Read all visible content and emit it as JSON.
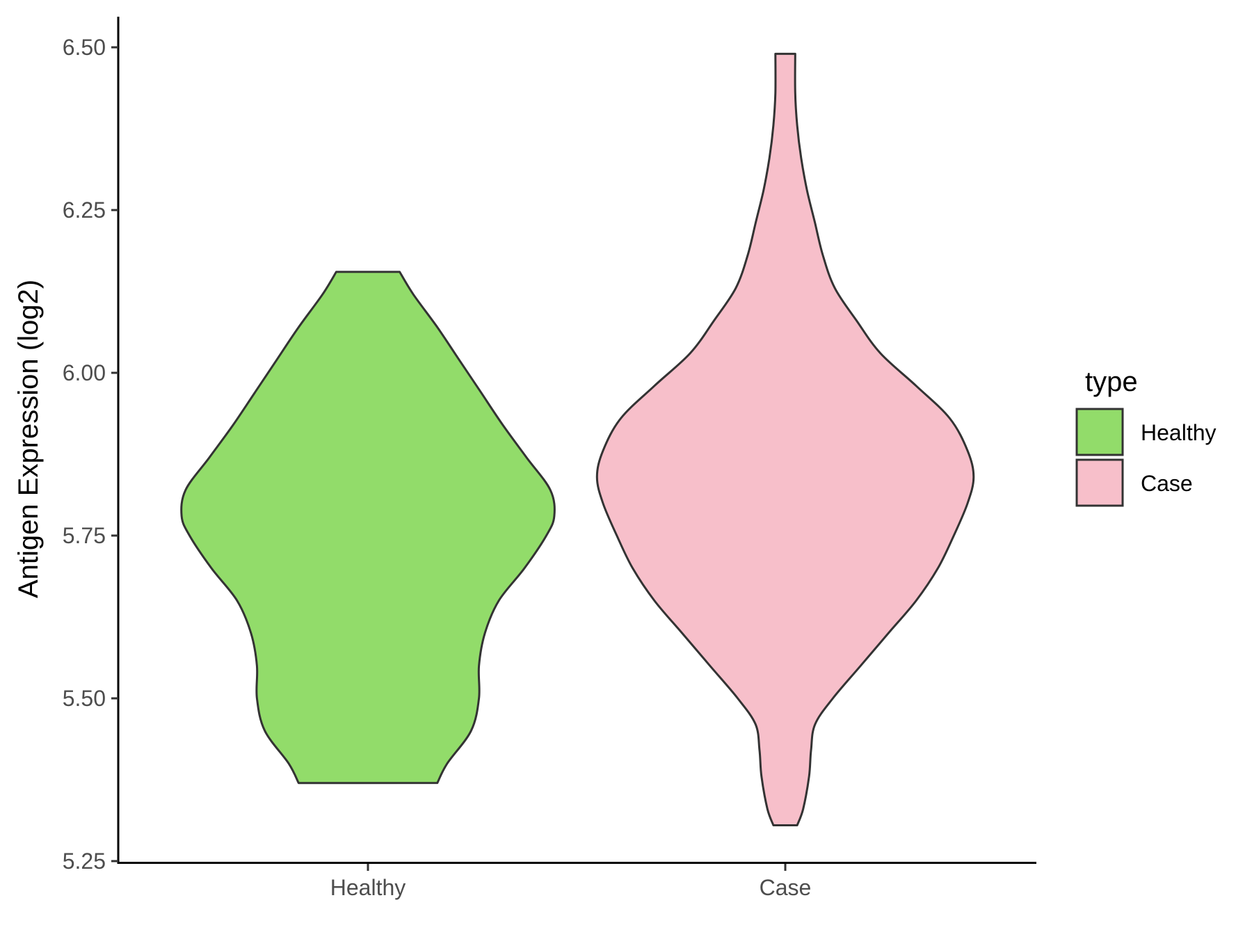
{
  "chart_data": {
    "type": "violin",
    "title": "",
    "xlabel": "",
    "ylabel": "Antigen Expression (log2)",
    "ylim": [
      5.25,
      6.5
    ],
    "yticks": [
      "5.25",
      "5.50",
      "5.75",
      "6.00",
      "6.25",
      "6.50"
    ],
    "categories": [
      "Healthy",
      "Case"
    ],
    "grid": false,
    "legend": {
      "title": "type",
      "position": "right",
      "entries": [
        {
          "label": "Healthy",
          "color": "#92dc6a"
        },
        {
          "label": "Case",
          "color": "#f7bfca"
        }
      ]
    },
    "series": [
      {
        "name": "Healthy",
        "color": "#92dc6a",
        "min": 5.37,
        "max": 6.155,
        "density_profile": [
          [
            5.37,
            0.35
          ],
          [
            5.4,
            0.4
          ],
          [
            5.45,
            0.52
          ],
          [
            5.5,
            0.56
          ],
          [
            5.55,
            0.56
          ],
          [
            5.6,
            0.59
          ],
          [
            5.65,
            0.66
          ],
          [
            5.7,
            0.79
          ],
          [
            5.75,
            0.9
          ],
          [
            5.78,
            0.94
          ],
          [
            5.82,
            0.92
          ],
          [
            5.87,
            0.8
          ],
          [
            5.92,
            0.68
          ],
          [
            5.97,
            0.57
          ],
          [
            6.02,
            0.46
          ],
          [
            6.07,
            0.35
          ],
          [
            6.12,
            0.23
          ],
          [
            6.155,
            0.16
          ]
        ]
      },
      {
        "name": "Case",
        "color": "#f7bfca",
        "min": 5.305,
        "max": 6.49,
        "density_profile": [
          [
            5.305,
            0.06
          ],
          [
            5.33,
            0.09
          ],
          [
            5.38,
            0.12
          ],
          [
            5.42,
            0.13
          ],
          [
            5.46,
            0.15
          ],
          [
            5.5,
            0.24
          ],
          [
            5.55,
            0.38
          ],
          [
            5.6,
            0.52
          ],
          [
            5.65,
            0.66
          ],
          [
            5.7,
            0.77
          ],
          [
            5.75,
            0.85
          ],
          [
            5.8,
            0.92
          ],
          [
            5.84,
            0.95
          ],
          [
            5.88,
            0.92
          ],
          [
            5.93,
            0.83
          ],
          [
            5.98,
            0.66
          ],
          [
            6.03,
            0.48
          ],
          [
            6.08,
            0.36
          ],
          [
            6.13,
            0.25
          ],
          [
            6.18,
            0.19
          ],
          [
            6.23,
            0.15
          ],
          [
            6.28,
            0.11
          ],
          [
            6.33,
            0.08
          ],
          [
            6.38,
            0.06
          ],
          [
            6.43,
            0.05
          ],
          [
            6.49,
            0.05
          ]
        ]
      }
    ]
  }
}
